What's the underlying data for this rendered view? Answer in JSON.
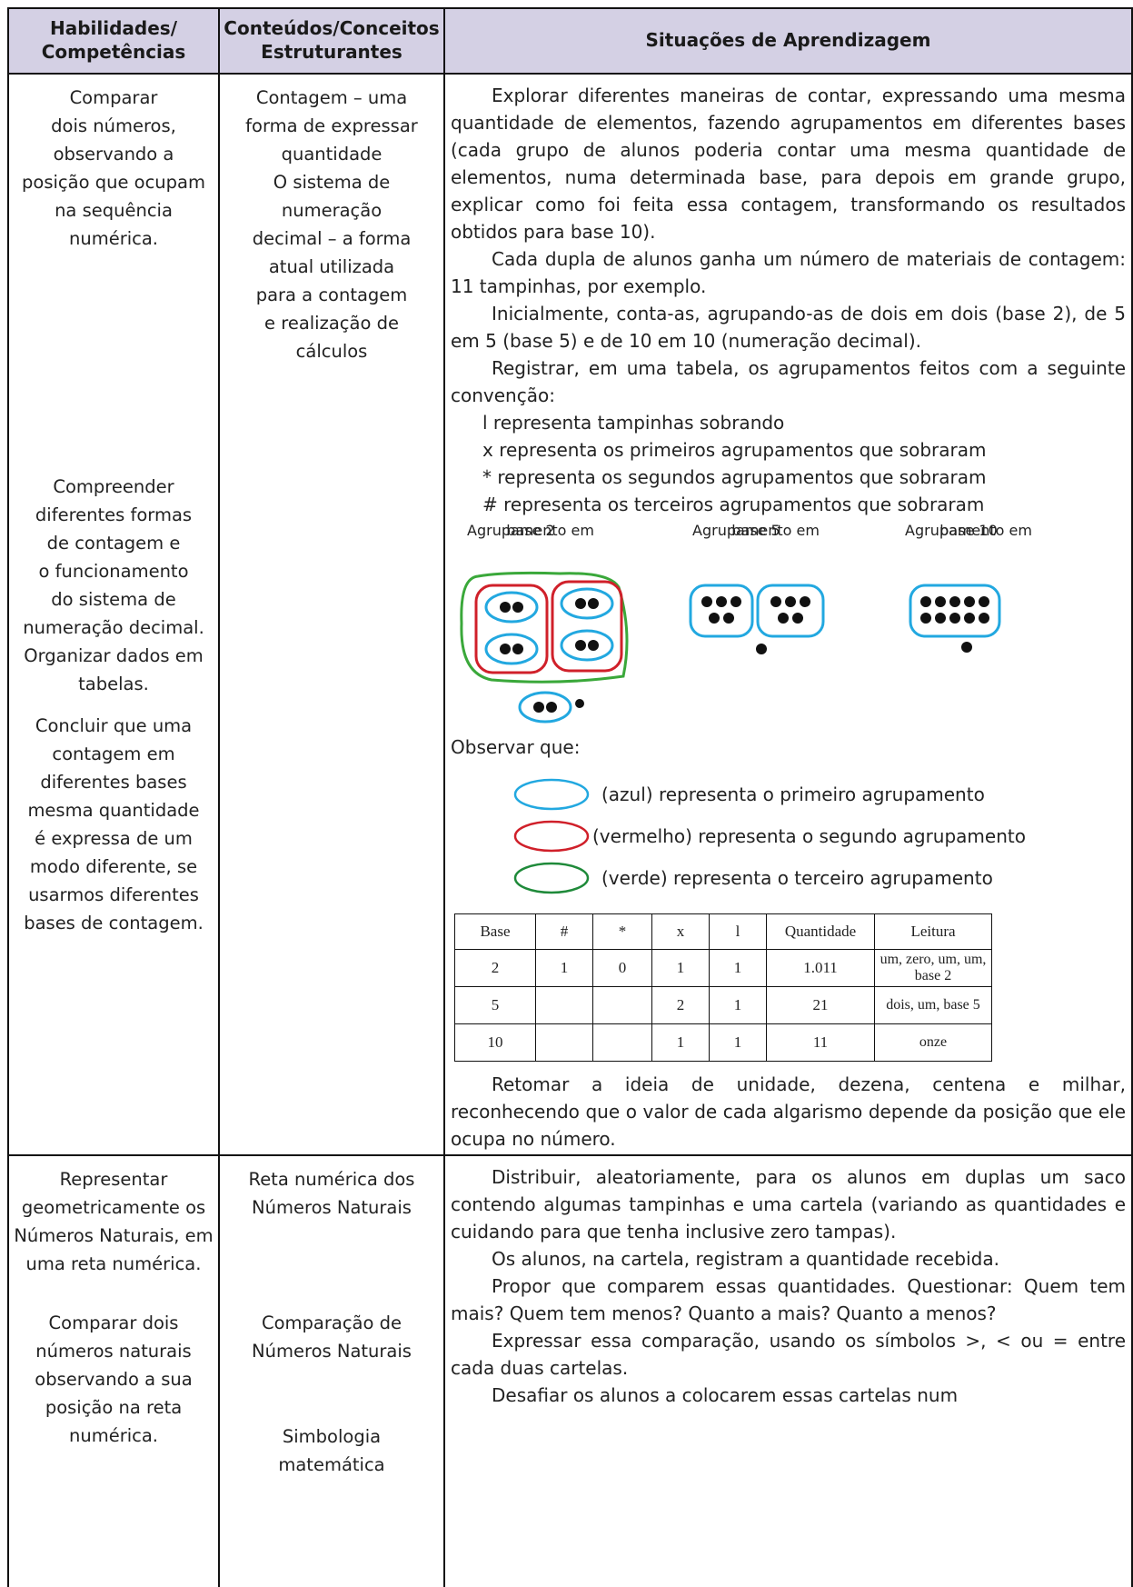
{
  "header": {
    "columns": [
      [
        "Habilidades/",
        "Competências"
      ],
      [
        "Conteúdos/Conceitos",
        "Estruturantes"
      ],
      [
        "Situações de Aprendizagem"
      ]
    ]
  },
  "rows": [
    {
      "skills": [
        [
          "Comparar",
          "dois números,",
          "observando a",
          "posição que ocupam",
          "na sequência",
          "numérica."
        ],
        [
          "Compreender",
          "diferentes formas",
          "de contagem e",
          "o funcionamento",
          "do sistema de",
          "numeração decimal.",
          "Organizar dados em",
          "tabelas."
        ],
        [
          "Concluir que uma",
          "contagem em",
          "diferentes bases",
          "mesma quantidade",
          "é expressa de um",
          "modo diferente, se",
          "usarmos diferentes",
          "bases de contagem."
        ]
      ],
      "contents": [
        [
          "Contagem – uma",
          "forma de expressar",
          "quantidade"
        ],
        [
          "O sistema de",
          "numeração",
          "decimal – a forma",
          "atual utilizada",
          "para a contagem",
          "e realização de",
          "cálculos"
        ]
      ],
      "situations": {
        "paragraphs": [
          "Explorar diferentes maneiras de contar, expressando uma mesma quantidade de elementos, fazendo agrupamentos em diferentes bases (cada grupo de alunos poderia contar uma mesma quantidade de elementos, numa determinada base, para depois em grande grupo, explicar como foi feita essa contagem, transformando os resultados obtidos para base 10).",
          "Cada dupla de alunos ganha um número de materiais de contagem: 11 tampinhas, por exemplo.",
          "Inicialmente, conta-as, agrupando-as de dois em dois (base 2), de 5 em 5 (base 5) e de 10 em 10 (numeração decimal).",
          "Registrar, em uma tabela, os agrupamentos feitos com a seguinte convenção:"
        ],
        "conventions": [
          "l representa tampinhas sobrando",
          "x representa os primeiros agrupamentos que sobraram",
          "* representa os segundos agrupamentos que sobraram",
          "# representa os terceiros agrupamentos que sobraram"
        ],
        "figure_labels": [
          [
            "Agrupamento em",
            "base 2"
          ],
          [
            "Agrupamento em",
            "base 5"
          ],
          [
            "Agrupamento em",
            "base 10"
          ]
        ],
        "observe": "Observar que:",
        "legend": [
          "(azul) representa o primeiro agrupamento",
          "(vermelho) representa o segundo agrupamento",
          "(verde) representa o terceiro agrupamento"
        ],
        "table": {
          "header": [
            "Base",
            "#",
            "*",
            "x",
            "l",
            "Quantidade",
            "Leitura"
          ],
          "rows": [
            [
              "2",
              "1",
              "0",
              "1",
              "1",
              "1.011",
              "um, zero, um, um, base 2"
            ],
            [
              "5",
              null,
              null,
              "2",
              "1",
              "21",
              "dois, um, base 5"
            ],
            [
              "10",
              null,
              null,
              "1",
              "1",
              "11",
              "onze"
            ]
          ]
        },
        "closing": "Retomar a ideia de unidade, dezena, centena e milhar, reconhecendo que o valor de cada algarismo depende da posição que ele ocupa no número."
      }
    },
    {
      "skills": [
        [
          "Representar",
          "geometricamente os",
          "Números Naturais, em",
          "uma reta numérica."
        ],
        [
          "Comparar dois",
          "números naturais",
          "observando a sua",
          "posição na reta",
          "numérica."
        ]
      ],
      "contents": [
        [
          "Reta numérica dos",
          "Números Naturais"
        ],
        [
          "Comparação de",
          "Números Naturais"
        ],
        [
          "Simbologia",
          "matemática"
        ]
      ],
      "situations": {
        "paragraphs": [
          "Distribuir, aleatoriamente, para os alunos em duplas um saco contendo algumas tampinhas e uma cartela (variando as quantidades e cuidando para que tenha inclusive zero tampas).",
          "Os alunos, na cartela, registram a quantidade recebida.",
          "Propor que comparem essas quantidades. Questionar: Quem tem mais? Quem tem menos? Quanto a mais? Quanto a menos?",
          "Expressar essa comparação, usando os símbolos >, < ou = entre cada duas cartelas.",
          "Desafiar os alunos a colocarem essas cartelas num"
        ]
      }
    }
  ]
}
